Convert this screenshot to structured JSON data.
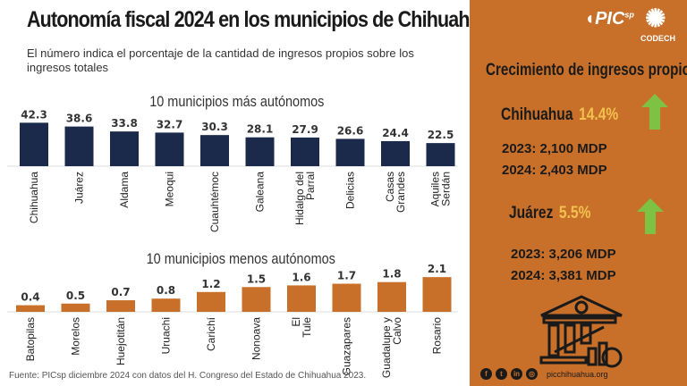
{
  "title": "Autonomía fiscal 2024 en los municipios de Chihuahua",
  "subtitle": "El número indica el porcentaje de la cantidad de ingresos propios sobre los ingresos totales",
  "source": "Fuente: PICsp diciembre 2024 con datos del H. Congreso del Estado de Chihuahua 2023.",
  "chart_data": [
    {
      "type": "bar",
      "title": "10 municipios más autónomos",
      "color": "#1b2a4a",
      "categories": [
        "Chihuahua",
        "Juárez",
        "Aldama",
        "Meoqui",
        "Cuauhtémoc",
        "Galeana",
        "Hidalgo del Parral",
        "Delicias",
        "Casas Grandes",
        "Aquiles Serdán"
      ],
      "values": [
        42.3,
        38.6,
        33.8,
        32.7,
        30.3,
        28.1,
        27.9,
        26.6,
        24.4,
        22.5
      ]
    },
    {
      "type": "bar",
      "title": "10 municipios menos autónomos",
      "color": "#c8702a",
      "categories": [
        "Batopilas",
        "Morelos",
        "Huejotitán",
        "Uruachi",
        "Carichí",
        "Nonoava",
        "El Tule",
        "Guazapares",
        "Guadalupe y Calvo",
        "Rosario"
      ],
      "values": [
        0.4,
        0.5,
        0.7,
        0.8,
        1.2,
        1.5,
        1.6,
        1.7,
        1.8,
        2.1
      ]
    }
  ],
  "panel": {
    "logos": [
      "PICsp",
      "CODECH"
    ],
    "title": "Crecimiento de ingresos propios",
    "items": [
      {
        "city": "Chihuahua",
        "pct": "14.4%",
        "y2023": "2023: 2,100 MDP",
        "y2024": "2024: 2,403 MDP",
        "icon": "arrow-up-icon"
      },
      {
        "city": "Juárez",
        "pct": "5.5%",
        "y2023": "2023: 3,206 MDP",
        "y2024": "2024: 3,381 MDP",
        "icon": "arrow-up-icon"
      }
    ],
    "website": "picchihuahua.org",
    "social": [
      "facebook-icon",
      "twitter-icon",
      "linkedin-icon",
      "globe-icon"
    ],
    "colors": {
      "panel": "#c8702a",
      "arrow": "#7dc242",
      "pct": "#f2c14e"
    }
  }
}
